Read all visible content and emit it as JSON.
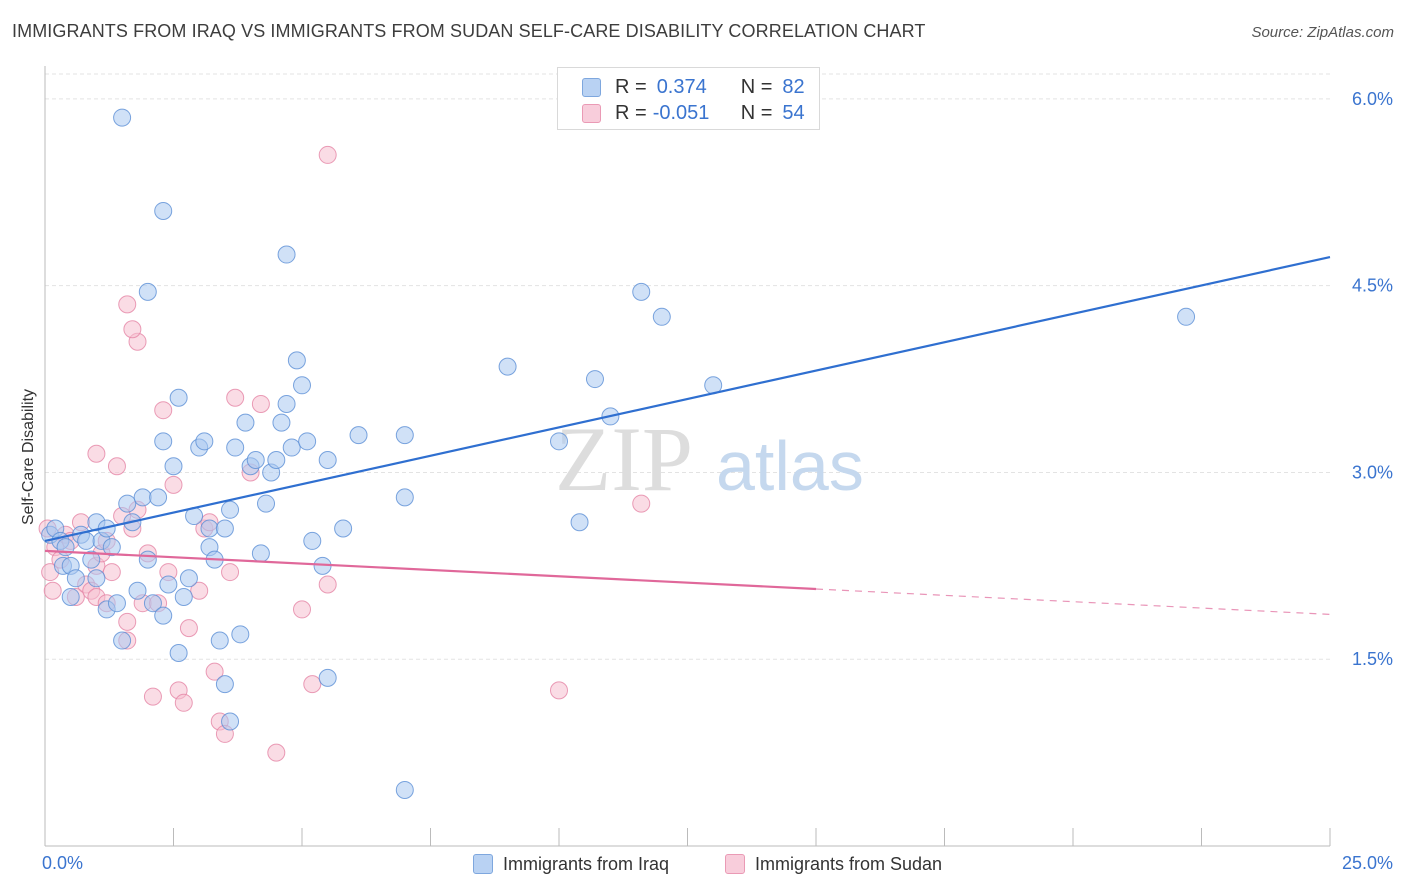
{
  "title": "IMMIGRANTS FROM IRAQ VS IMMIGRANTS FROM SUDAN SELF-CARE DISABILITY CORRELATION CHART",
  "source": "Source: ZipAtlas.com",
  "watermark": {
    "zip": "ZIP",
    "atlas": "atlas"
  },
  "legend_top": [
    {
      "r_label": "R =",
      "r_value": "0.374",
      "n_label": "N =",
      "n_value": "82"
    },
    {
      "r_label": "R =",
      "r_value": "-0.051",
      "n_label": "N =",
      "n_value": "54"
    }
  ],
  "legend_bottom": [
    {
      "label": "Immigrants from Iraq"
    },
    {
      "label": "Immigrants from Sudan"
    }
  ],
  "colors": {
    "iraq_fill": "#a9c8f0",
    "iraq_stroke": "#5b8fd6",
    "iraq_line": "#2f6fd0",
    "sudan_fill": "#f6bfd0",
    "sudan_stroke": "#e585a5",
    "sudan_line": "#e0689a",
    "grid": "#e3e3e3",
    "tick_text": "#3a74cf",
    "watermark": "#dddddd",
    "watermark_atlas": "#c5d8ee"
  },
  "chart_data": {
    "type": "scatter",
    "title": "IMMIGRANTS FROM IRAQ VS IMMIGRANTS FROM SUDAN SELF-CARE DISABILITY CORRELATION CHART",
    "xlabel": "",
    "ylabel": "Self-Care Disability",
    "xlim": [
      0,
      25
    ],
    "ylim": [
      0,
      6.2
    ],
    "x_tick_labels": [
      {
        "value": 0,
        "label": "0.0%"
      },
      {
        "value": 25,
        "label": "25.0%"
      }
    ],
    "y_ticks": [
      {
        "value": 1.5,
        "label": "1.5%"
      },
      {
        "value": 3.0,
        "label": "3.0%"
      },
      {
        "value": 4.5,
        "label": "4.5%"
      },
      {
        "value": 6.0,
        "label": "6.0%"
      }
    ],
    "x_minor_ticks": [
      0,
      2.5,
      5,
      7.5,
      10,
      12.5,
      15,
      17.5,
      20,
      22.5,
      25
    ],
    "grid": true,
    "legend_placement": "top-center",
    "series": [
      {
        "name": "Immigrants from Iraq",
        "R": 0.374,
        "N": 82,
        "trend": {
          "x": [
            0,
            25
          ],
          "y": [
            2.45,
            4.73
          ],
          "dashed_from": null
        },
        "points": [
          [
            0.1,
            2.5
          ],
          [
            0.2,
            2.55
          ],
          [
            0.3,
            2.45
          ],
          [
            0.35,
            2.25
          ],
          [
            0.4,
            2.4
          ],
          [
            0.5,
            2.25
          ],
          [
            0.5,
            2.0
          ],
          [
            0.6,
            2.15
          ],
          [
            0.7,
            2.5
          ],
          [
            0.8,
            2.45
          ],
          [
            0.9,
            2.3
          ],
          [
            1.0,
            2.15
          ],
          [
            1.0,
            2.6
          ],
          [
            1.1,
            2.45
          ],
          [
            1.2,
            2.55
          ],
          [
            1.2,
            1.9
          ],
          [
            1.3,
            2.4
          ],
          [
            1.4,
            1.95
          ],
          [
            1.5,
            1.65
          ],
          [
            1.6,
            2.75
          ],
          [
            1.7,
            2.6
          ],
          [
            1.8,
            2.05
          ],
          [
            1.9,
            2.8
          ],
          [
            2.0,
            2.3
          ],
          [
            2.1,
            1.95
          ],
          [
            2.2,
            2.8
          ],
          [
            2.3,
            3.25
          ],
          [
            2.3,
            1.85
          ],
          [
            2.4,
            2.1
          ],
          [
            2.5,
            3.05
          ],
          [
            2.6,
            3.6
          ],
          [
            2.7,
            2.0
          ],
          [
            2.8,
            2.15
          ],
          [
            2.9,
            2.65
          ],
          [
            3.0,
            3.2
          ],
          [
            3.1,
            3.25
          ],
          [
            3.2,
            2.55
          ],
          [
            3.2,
            2.4
          ],
          [
            3.3,
            2.3
          ],
          [
            3.4,
            1.65
          ],
          [
            3.5,
            2.55
          ],
          [
            3.6,
            2.7
          ],
          [
            3.7,
            3.2
          ],
          [
            3.8,
            1.7
          ],
          [
            3.9,
            3.4
          ],
          [
            4.0,
            3.05
          ],
          [
            4.1,
            3.1
          ],
          [
            4.2,
            2.35
          ],
          [
            4.3,
            2.75
          ],
          [
            4.4,
            3.0
          ],
          [
            4.5,
            3.1
          ],
          [
            4.6,
            3.4
          ],
          [
            4.7,
            3.55
          ],
          [
            4.8,
            3.2
          ],
          [
            4.9,
            3.9
          ],
          [
            5.0,
            3.7
          ],
          [
            5.1,
            3.25
          ],
          [
            5.2,
            2.45
          ],
          [
            5.4,
            2.25
          ],
          [
            5.5,
            3.1
          ],
          [
            5.8,
            2.55
          ],
          [
            6.1,
            3.3
          ],
          [
            7.0,
            2.8
          ],
          [
            7.0,
            3.3
          ],
          [
            9.0,
            3.85
          ],
          [
            10.0,
            3.25
          ],
          [
            10.4,
            2.6
          ],
          [
            10.7,
            3.75
          ],
          [
            11.0,
            3.45
          ],
          [
            11.6,
            4.45
          ],
          [
            12.0,
            4.25
          ],
          [
            13.0,
            3.7
          ],
          [
            22.2,
            4.25
          ],
          [
            1.5,
            5.85
          ],
          [
            2.3,
            5.1
          ],
          [
            2.0,
            4.45
          ],
          [
            4.7,
            4.75
          ],
          [
            3.5,
            1.3
          ],
          [
            3.6,
            1.0
          ],
          [
            5.5,
            1.35
          ],
          [
            7.0,
            0.45
          ],
          [
            2.6,
            1.55
          ]
        ]
      },
      {
        "name": "Immigrants from Sudan",
        "R": -0.051,
        "N": 54,
        "trend": {
          "x": [
            0,
            25
          ],
          "y": [
            2.37,
            1.86
          ],
          "dashed_from": 15
        },
        "points": [
          [
            0.05,
            2.55
          ],
          [
            0.1,
            2.2
          ],
          [
            0.15,
            2.05
          ],
          [
            0.2,
            2.4
          ],
          [
            0.3,
            2.3
          ],
          [
            0.4,
            2.5
          ],
          [
            0.5,
            2.45
          ],
          [
            0.6,
            2.0
          ],
          [
            0.7,
            2.6
          ],
          [
            0.8,
            2.1
          ],
          [
            0.9,
            2.05
          ],
          [
            1.0,
            2.25
          ],
          [
            1.0,
            2.0
          ],
          [
            1.1,
            2.35
          ],
          [
            1.2,
            2.45
          ],
          [
            1.2,
            1.95
          ],
          [
            1.3,
            2.2
          ],
          [
            1.4,
            3.05
          ],
          [
            1.5,
            2.65
          ],
          [
            1.6,
            1.8
          ],
          [
            1.6,
            1.65
          ],
          [
            1.7,
            2.55
          ],
          [
            1.8,
            2.7
          ],
          [
            1.9,
            1.95
          ],
          [
            2.0,
            2.35
          ],
          [
            2.1,
            1.2
          ],
          [
            2.2,
            1.95
          ],
          [
            2.3,
            3.5
          ],
          [
            2.4,
            2.2
          ],
          [
            2.5,
            2.9
          ],
          [
            2.6,
            1.25
          ],
          [
            2.7,
            1.15
          ],
          [
            2.8,
            1.75
          ],
          [
            3.0,
            2.05
          ],
          [
            3.1,
            2.55
          ],
          [
            3.2,
            2.6
          ],
          [
            3.3,
            1.4
          ],
          [
            3.4,
            1.0
          ],
          [
            3.5,
            0.9
          ],
          [
            3.6,
            2.2
          ],
          [
            3.7,
            3.6
          ],
          [
            4.0,
            3.0
          ],
          [
            4.2,
            3.55
          ],
          [
            4.5,
            0.75
          ],
          [
            5.0,
            1.9
          ],
          [
            5.2,
            1.3
          ],
          [
            5.5,
            2.1
          ],
          [
            5.5,
            5.55
          ],
          [
            10.0,
            1.25
          ],
          [
            11.6,
            2.75
          ],
          [
            1.6,
            4.35
          ],
          [
            1.8,
            4.05
          ],
          [
            1.7,
            4.15
          ],
          [
            1.0,
            3.15
          ]
        ]
      }
    ]
  }
}
